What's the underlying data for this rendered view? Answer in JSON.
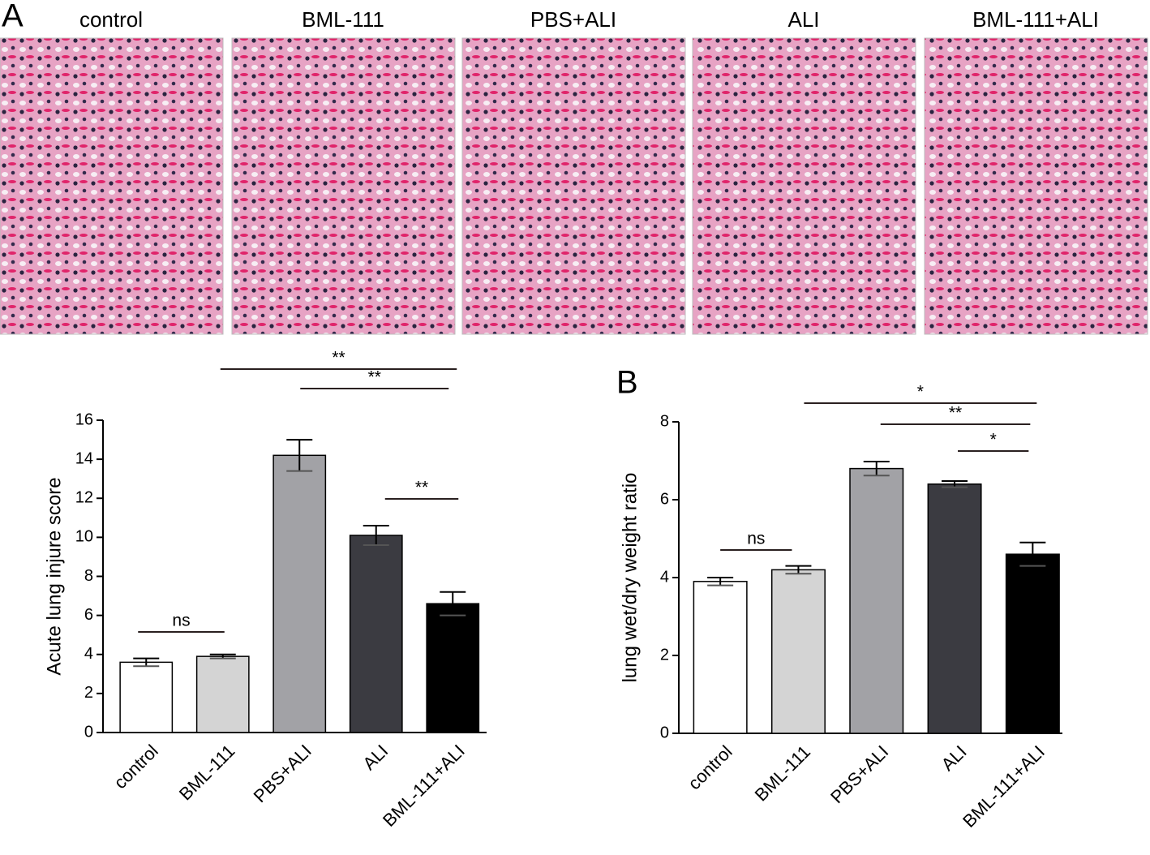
{
  "figure": {
    "panel_labels": [
      "A",
      "B"
    ],
    "image_titles": [
      "control",
      "BML-111",
      "PBS+ALI",
      "ALI",
      "BML-111+ALI"
    ]
  },
  "chart_data": [
    {
      "type": "bar",
      "y_label": "Acute lung injure score",
      "categories": [
        "control",
        "BML-111",
        "PBS+ALI",
        "ALI",
        "BML-111+ALI"
      ],
      "values": [
        3.6,
        3.9,
        14.2,
        10.1,
        6.6
      ],
      "errors": [
        0.2,
        0.1,
        0.8,
        0.5,
        0.6
      ],
      "colors": [
        "#ffffff",
        "#d4d4d4",
        "#a2a2a6",
        "#3b3b41",
        "#000000"
      ],
      "ylim": [
        0,
        16
      ],
      "yticks": [
        0,
        2,
        4,
        6,
        8,
        10,
        12,
        14,
        16
      ],
      "significance": [
        "ns",
        "**",
        "**",
        "**"
      ]
    },
    {
      "type": "bar",
      "y_label": "lung wet/dry weight ratio",
      "categories": [
        "control",
        "BML-111",
        "PBS+ALI",
        "ALI",
        "BML-111+ALI"
      ],
      "values": [
        3.9,
        4.2,
        6.8,
        6.4,
        4.6
      ],
      "errors": [
        0.1,
        0.1,
        0.18,
        0.08,
        0.3
      ],
      "colors": [
        "#ffffff",
        "#d4d4d4",
        "#a2a2a6",
        "#3b3b41",
        "#000000"
      ],
      "ylim": [
        0,
        8
      ],
      "yticks": [
        0,
        2,
        4,
        6,
        8
      ],
      "significance": [
        "ns",
        "*",
        "**",
        "*"
      ]
    }
  ]
}
